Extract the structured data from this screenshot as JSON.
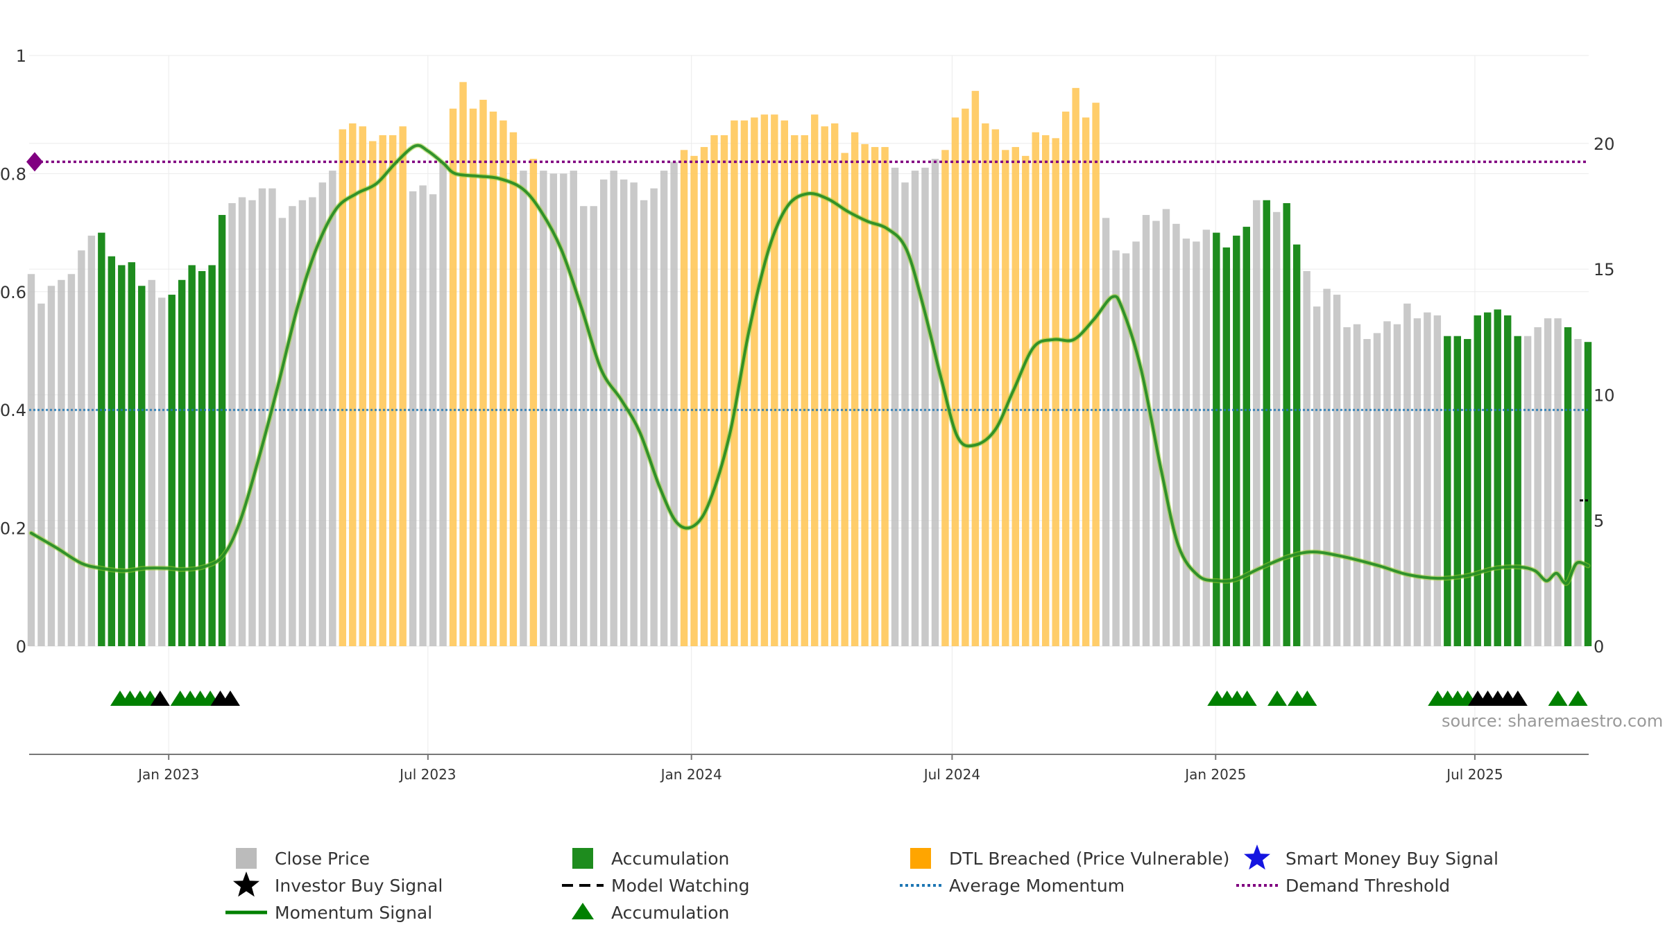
{
  "chart_data": {
    "type": "bar",
    "source": "source: sharemaestro.com",
    "left_axis": {
      "range": [
        0,
        1
      ],
      "ticks": [
        "0",
        "0.2",
        "0.4",
        "0.6",
        "0.8",
        "1"
      ]
    },
    "right_axis": {
      "range": [
        0,
        23.5
      ],
      "ticks": [
        "0",
        "5",
        "10",
        "15",
        "20"
      ]
    },
    "x_axis": {
      "start": "2022-09-27",
      "end": "2025-09-18",
      "ticks": [
        "Jan 2023",
        "Jul 2023",
        "Jan 2024",
        "Jul 2024",
        "Jan 2025",
        "Jul 2025"
      ]
    },
    "legend": [
      {
        "label": "Close Price",
        "marker": "square",
        "color": "#bbbbbb"
      },
      {
        "label": "Accumulation",
        "marker": "square",
        "color": "#1e8c1e"
      },
      {
        "label": "DTL Breached (Price Vulnerable)",
        "marker": "square",
        "color": "#ffa500"
      },
      {
        "label": "Smart Money Buy Signal",
        "marker": "star",
        "color": "#1515e0"
      },
      {
        "label": "Investor Buy Signal",
        "marker": "star",
        "color": "#000000"
      },
      {
        "label": "Model Watching",
        "marker": "dash",
        "color": "#000000"
      },
      {
        "label": "Average Momentum",
        "marker": "dot",
        "color": "#1f77b4"
      },
      {
        "label": "Demand Threshold",
        "marker": "dot",
        "color": "#800080"
      },
      {
        "label": "Momentum Signal",
        "marker": "line",
        "color": "#008000"
      },
      {
        "label": "Accumulation",
        "marker": "triangle",
        "color": "#008000"
      }
    ],
    "colors": {
      "close": "#c0c0c0",
      "accumulation": "#1e8c1e",
      "dtl": "#ffc85a",
      "momentum": "#228b22",
      "momentum_outline": "#9acd32",
      "average_momentum": "#1f77b4",
      "demand_threshold": "#800080"
    },
    "bar_values": [
      0.63,
      0.58,
      0.61,
      0.62,
      0.63,
      0.67,
      0.695,
      0.7,
      0.66,
      0.645,
      0.65,
      0.61,
      0.62,
      0.59,
      0.595,
      0.62,
      0.645,
      0.635,
      0.645,
      0.73,
      0.75,
      0.76,
      0.755,
      0.775,
      0.775,
      0.725,
      0.745,
      0.755,
      0.76,
      0.785,
      0.805,
      0.875,
      0.885,
      0.88,
      0.855,
      0.865,
      0.865,
      0.88,
      0.77,
      0.78,
      0.765,
      0.82,
      0.91,
      0.955,
      0.91,
      0.925,
      0.905,
      0.89,
      0.87,
      0.805,
      0.825,
      0.805,
      0.8,
      0.8,
      0.805,
      0.745,
      0.745,
      0.79,
      0.805,
      0.79,
      0.785,
      0.755,
      0.775,
      0.805,
      0.82,
      0.84,
      0.83,
      0.845,
      0.865,
      0.865,
      0.89,
      0.89,
      0.895,
      0.9,
      0.9,
      0.89,
      0.865,
      0.865,
      0.9,
      0.88,
      0.885,
      0.835,
      0.87,
      0.85,
      0.845,
      0.845,
      0.81,
      0.785,
      0.805,
      0.81,
      0.825,
      0.84,
      0.895,
      0.91,
      0.94,
      0.885,
      0.875,
      0.84,
      0.845,
      0.83,
      0.87,
      0.865,
      0.86,
      0.905,
      0.945,
      0.895,
      0.92,
      0.725,
      0.67,
      0.665,
      0.685,
      0.73,
      0.72,
      0.74,
      0.715,
      0.69,
      0.685,
      0.705,
      0.7,
      0.675,
      0.695,
      0.71,
      0.755,
      0.755,
      0.735,
      0.75,
      0.68,
      0.635,
      0.575,
      0.605,
      0.595,
      0.54,
      0.545,
      0.52,
      0.53,
      0.55,
      0.545,
      0.58,
      0.555,
      0.565,
      0.56,
      0.525,
      0.525,
      0.52,
      0.56,
      0.565,
      0.57,
      0.56,
      0.525,
      0.525,
      0.54,
      0.555,
      0.555,
      0.54,
      0.52,
      0.515
    ],
    "bar_types": [
      "close",
      "close",
      "close",
      "close",
      "close",
      "close",
      "close",
      "acc",
      "acc",
      "acc",
      "acc",
      "acc",
      "close",
      "close",
      "acc",
      "acc",
      "acc",
      "acc",
      "acc",
      "acc",
      "close",
      "close",
      "close",
      "close",
      "close",
      "close",
      "close",
      "close",
      "close",
      "close",
      "close",
      "dtl",
      "dtl",
      "dtl",
      "dtl",
      "dtl",
      "dtl",
      "dtl",
      "close",
      "close",
      "close",
      "close",
      "dtl",
      "dtl",
      "dtl",
      "dtl",
      "dtl",
      "dtl",
      "dtl",
      "close",
      "dtl",
      "close",
      "close",
      "close",
      "close",
      "close",
      "close",
      "close",
      "close",
      "close",
      "close",
      "close",
      "close",
      "close",
      "close",
      "dtl",
      "dtl",
      "dtl",
      "dtl",
      "dtl",
      "dtl",
      "dtl",
      "dtl",
      "dtl",
      "dtl",
      "dtl",
      "dtl",
      "dtl",
      "dtl",
      "dtl",
      "dtl",
      "dtl",
      "dtl",
      "dtl",
      "dtl",
      "dtl",
      "close",
      "close",
      "close",
      "close",
      "close",
      "dtl",
      "dtl",
      "dtl",
      "dtl",
      "dtl",
      "dtl",
      "dtl",
      "dtl",
      "dtl",
      "dtl",
      "dtl",
      "dtl",
      "dtl",
      "dtl",
      "dtl",
      "dtl",
      "close",
      "close",
      "close",
      "close",
      "close",
      "close",
      "close",
      "close",
      "close",
      "close",
      "close",
      "acc",
      "acc",
      "acc",
      "acc",
      "close",
      "acc",
      "close",
      "acc",
      "acc",
      "close",
      "close",
      "close",
      "close",
      "close",
      "close",
      "close",
      "close",
      "close",
      "close",
      "close",
      "close",
      "close",
      "close",
      "acc",
      "acc",
      "acc",
      "acc",
      "acc",
      "acc",
      "acc",
      "acc",
      "close",
      "close",
      "close",
      "close",
      "acc",
      "close",
      "acc",
      "close"
    ],
    "momentum": [
      [
        "2022-09-27",
        4.5
      ],
      [
        "2022-10-15",
        3.9
      ],
      [
        "2022-11-01",
        3.3
      ],
      [
        "2022-11-15",
        3.1
      ],
      [
        "2022-12-01",
        3.0
      ],
      [
        "2022-12-15",
        3.1
      ],
      [
        "2023-01-01",
        3.1
      ],
      [
        "2023-01-10",
        3.05
      ],
      [
        "2023-01-25",
        3.15
      ],
      [
        "2023-02-08",
        3.6
      ],
      [
        "2023-02-20",
        5.0
      ],
      [
        "2023-03-05",
        7.5
      ],
      [
        "2023-03-18",
        10.3
      ],
      [
        "2023-04-01",
        13.5
      ],
      [
        "2023-04-14",
        15.8
      ],
      [
        "2023-04-28",
        17.4
      ],
      [
        "2023-05-12",
        18.0
      ],
      [
        "2023-05-26",
        18.4
      ],
      [
        "2023-06-08",
        19.2
      ],
      [
        "2023-06-22",
        19.9
      ],
      [
        "2023-07-01",
        19.7
      ],
      [
        "2023-07-12",
        19.2
      ],
      [
        "2023-07-20",
        18.8
      ],
      [
        "2023-08-05",
        18.7
      ],
      [
        "2023-08-20",
        18.6
      ],
      [
        "2023-09-05",
        18.2
      ],
      [
        "2023-09-18",
        17.3
      ],
      [
        "2023-10-02",
        15.8
      ],
      [
        "2023-10-16",
        13.5
      ],
      [
        "2023-10-30",
        11.0
      ],
      [
        "2023-11-13",
        9.8
      ],
      [
        "2023-11-26",
        8.5
      ],
      [
        "2023-12-10",
        6.3
      ],
      [
        "2023-12-22",
        4.9
      ],
      [
        "2024-01-03",
        4.8
      ],
      [
        "2024-01-14",
        5.8
      ],
      [
        "2024-01-28",
        8.5
      ],
      [
        "2024-02-10",
        12.5
      ],
      [
        "2024-02-24",
        15.8
      ],
      [
        "2024-03-08",
        17.5
      ],
      [
        "2024-03-22",
        18.0
      ],
      [
        "2024-04-05",
        17.8
      ],
      [
        "2024-04-19",
        17.3
      ],
      [
        "2024-05-03",
        16.9
      ],
      [
        "2024-05-17",
        16.6
      ],
      [
        "2024-05-30",
        15.8
      ],
      [
        "2024-06-11",
        13.5
      ],
      [
        "2024-06-24",
        10.5
      ],
      [
        "2024-07-05",
        8.3
      ],
      [
        "2024-07-17",
        8.0
      ],
      [
        "2024-07-31",
        8.6
      ],
      [
        "2024-08-13",
        10.2
      ],
      [
        "2024-08-27",
        11.9
      ],
      [
        "2024-09-10",
        12.2
      ],
      [
        "2024-09-24",
        12.2
      ],
      [
        "2024-10-08",
        13.0
      ],
      [
        "2024-10-21",
        13.9
      ],
      [
        "2024-10-28",
        13.4
      ],
      [
        "2024-11-10",
        11.0
      ],
      [
        "2024-11-24",
        7.0
      ],
      [
        "2024-12-06",
        4.0
      ],
      [
        "2024-12-20",
        2.8
      ],
      [
        "2025-01-03",
        2.6
      ],
      [
        "2025-01-15",
        2.65
      ],
      [
        "2025-02-01",
        3.1
      ],
      [
        "2025-02-20",
        3.55
      ],
      [
        "2025-03-10",
        3.75
      ],
      [
        "2025-04-01",
        3.55
      ],
      [
        "2025-04-25",
        3.2
      ],
      [
        "2025-05-15",
        2.85
      ],
      [
        "2025-06-05",
        2.7
      ],
      [
        "2025-06-25",
        2.8
      ],
      [
        "2025-07-15",
        3.1
      ],
      [
        "2025-08-01",
        3.15
      ],
      [
        "2025-08-12",
        3.0
      ],
      [
        "2025-08-20",
        2.6
      ],
      [
        "2025-08-27",
        2.9
      ],
      [
        "2025-09-03",
        2.5
      ],
      [
        "2025-09-10",
        3.3
      ],
      [
        "2025-09-18",
        3.2
      ]
    ],
    "average_momentum": 0.4,
    "demand_threshold": 0.82,
    "model_watching_marker": {
      "date": "2025-09-18",
      "value": 5.8
    },
    "triangle_markers": {
      "accumulation": [
        "2022-11-28",
        "2022-12-05",
        "2022-12-12",
        "2022-12-19",
        "2023-01-09",
        "2023-01-16",
        "2023-01-23",
        "2023-01-30",
        "2025-01-02",
        "2025-01-09",
        "2025-01-16",
        "2025-01-23",
        "2025-02-13",
        "2025-02-27",
        "2025-03-06",
        "2025-06-05",
        "2025-06-12",
        "2025-06-19",
        "2025-06-26",
        "2025-08-28",
        "2025-09-11"
      ],
      "investor": [
        "2022-12-26",
        "2023-02-06",
        "2023-02-13",
        "2025-07-03",
        "2025-07-10",
        "2025-07-17",
        "2025-07-24",
        "2025-07-31"
      ]
    }
  }
}
